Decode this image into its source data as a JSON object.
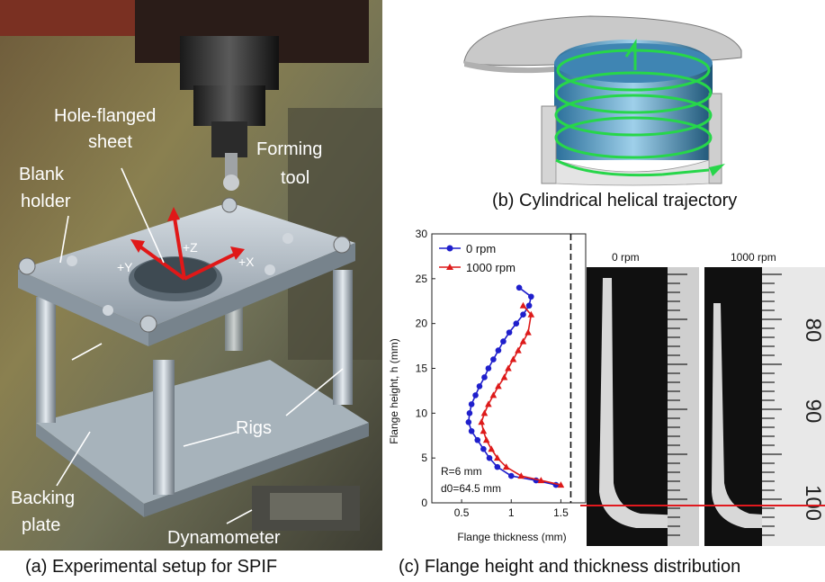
{
  "panel_a": {
    "callouts": {
      "hole_flanged_sheet": [
        "Hole-flanged",
        "sheet"
      ],
      "forming_tool": [
        "Forming",
        "tool"
      ],
      "blank_holder": [
        "Blank",
        "holder"
      ],
      "rigs": "Rigs",
      "backing_plate": [
        "Backing",
        "plate"
      ],
      "dynamometer": "Dynamometer"
    },
    "axes": {
      "z": "+Z",
      "y": "+Y",
      "x": "+X"
    },
    "caption": "(a) Experimental setup for SPIF"
  },
  "panel_b": {
    "caption": "(b) Cylindrical helical trajectory"
  },
  "panel_c": {
    "caption": "(c) Flange height and thickness distribution",
    "xray_titles": [
      "0 rpm",
      "1000 rpm"
    ],
    "ruler_numbers": [
      "80",
      "90",
      "100"
    ]
  },
  "chart_data": {
    "type": "line",
    "xlabel": "Flange thickness (mm)",
    "ylabel": "Flange height, h (mm)",
    "xlim": [
      0.2,
      1.75
    ],
    "ylim": [
      0,
      30
    ],
    "xticks": [
      0.5,
      1.0,
      1.5
    ],
    "yticks": [
      0,
      5,
      10,
      15,
      20,
      25,
      30
    ],
    "legend_position": "top-left",
    "annotations": {
      "r": "R=6 mm",
      "d0": "d0=64.5 mm"
    },
    "vline_x": 1.6,
    "series": [
      {
        "name": "0 rpm",
        "color": "#1f1fcc",
        "marker": "circle",
        "points": [
          [
            1.08,
            24
          ],
          [
            1.2,
            23
          ],
          [
            1.18,
            22
          ],
          [
            1.12,
            21
          ],
          [
            1.05,
            20
          ],
          [
            0.98,
            19
          ],
          [
            0.92,
            18
          ],
          [
            0.87,
            17
          ],
          [
            0.82,
            16
          ],
          [
            0.77,
            15
          ],
          [
            0.73,
            14
          ],
          [
            0.68,
            13
          ],
          [
            0.64,
            12
          ],
          [
            0.6,
            11
          ],
          [
            0.58,
            10
          ],
          [
            0.57,
            9
          ],
          [
            0.6,
            8
          ],
          [
            0.66,
            7
          ],
          [
            0.72,
            6
          ],
          [
            0.78,
            5
          ],
          [
            0.86,
            4
          ],
          [
            1.0,
            3
          ],
          [
            1.25,
            2.5
          ],
          [
            1.45,
            2
          ]
        ]
      },
      {
        "name": "1000 rpm",
        "color": "#dd1a1a",
        "marker": "triangle",
        "points": [
          [
            1.12,
            22
          ],
          [
            1.2,
            21
          ],
          [
            1.17,
            19
          ],
          [
            1.12,
            18
          ],
          [
            1.07,
            17
          ],
          [
            1.02,
            16
          ],
          [
            0.97,
            15
          ],
          [
            0.93,
            14
          ],
          [
            0.87,
            13
          ],
          [
            0.82,
            12
          ],
          [
            0.77,
            11
          ],
          [
            0.73,
            10
          ],
          [
            0.7,
            9
          ],
          [
            0.72,
            8
          ],
          [
            0.75,
            7
          ],
          [
            0.8,
            6
          ],
          [
            0.86,
            5
          ],
          [
            0.95,
            4
          ],
          [
            1.1,
            3
          ],
          [
            1.3,
            2.5
          ],
          [
            1.5,
            2
          ]
        ]
      }
    ]
  }
}
